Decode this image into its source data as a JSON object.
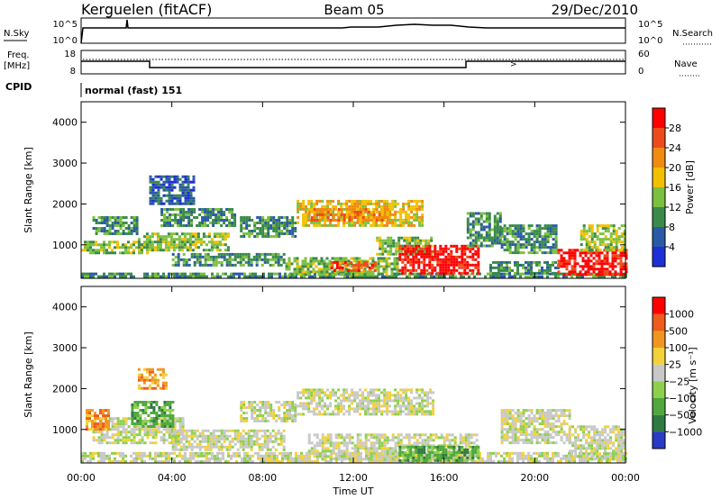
{
  "header": {
    "station": "Kerguelen (fitACF)",
    "beam": "Beam 05",
    "date": "29/Dec/2010"
  },
  "top_panel": {
    "left_label": "N.Sky",
    "right_label": "N.Search",
    "ticks_left": [
      "10^5",
      "10^0"
    ],
    "ticks_right": [
      "10^5",
      "10^0"
    ]
  },
  "freq_panel": {
    "left_label_1": "Freq.",
    "left_label_2": "[MHz]",
    "ticks_left": [
      "18",
      "8"
    ],
    "ticks_right": [
      "60",
      "0"
    ],
    "right_label": "Nave"
  },
  "cpid": {
    "label": "CPID",
    "value": "normal (fast) 151"
  },
  "x_axis": {
    "title": "Time UT",
    "ticks": [
      "00:00",
      "04:00",
      "08:00",
      "12:00",
      "16:00",
      "20:00",
      "00:00"
    ]
  },
  "chart_data": [
    {
      "type": "heatmap",
      "name": "power",
      "ylabel": "Slant Range [km]",
      "ylim": [
        180,
        4500
      ],
      "yticks": [
        "1000",
        "2000",
        "3000",
        "4000"
      ],
      "xlim_hours": [
        0,
        24
      ],
      "colorbar": {
        "label": "Power [dB]",
        "ticks": [
          "4",
          "8",
          "12",
          "16",
          "20",
          "24",
          "28"
        ],
        "colors": [
          "#1e2fd8",
          "#2a5aa6",
          "#3a8a4a",
          "#7cc040",
          "#f2c000",
          "#f08a10",
          "#ee4b1c",
          "#ff0000"
        ]
      },
      "echo_regions": [
        {
          "t": [
            0.0,
            24.0
          ],
          "r": [
            200,
            320
          ],
          "level": 2
        },
        {
          "t": [
            0.0,
            3.0
          ],
          "r": [
            800,
            1100
          ],
          "level": 3
        },
        {
          "t": [
            0.5,
            2.5
          ],
          "r": [
            1300,
            1700
          ],
          "level": 2
        },
        {
          "t": [
            2.5,
            6.5
          ],
          "r": [
            900,
            1300
          ],
          "level": 3
        },
        {
          "t": [
            3.5,
            6.8
          ],
          "r": [
            1500,
            1900
          ],
          "level": 2
        },
        {
          "t": [
            4.0,
            9.0
          ],
          "r": [
            500,
            800
          ],
          "level": 2
        },
        {
          "t": [
            3.0,
            5.0
          ],
          "r": [
            2000,
            2700
          ],
          "level": 1
        },
        {
          "t": [
            7.0,
            9.5
          ],
          "r": [
            1200,
            1700
          ],
          "level": 2
        },
        {
          "t": [
            9.5,
            15.0
          ],
          "r": [
            1500,
            2100
          ],
          "level": 4
        },
        {
          "t": [
            10.0,
            13.5
          ],
          "r": [
            1600,
            1900
          ],
          "level": 5
        },
        {
          "t": [
            9.0,
            14.0
          ],
          "r": [
            300,
            700
          ],
          "level": 3
        },
        {
          "t": [
            11.0,
            13.0
          ],
          "r": [
            400,
            600
          ],
          "level": 6
        },
        {
          "t": [
            13.0,
            15.5
          ],
          "r": [
            800,
            1200
          ],
          "level": 3
        },
        {
          "t": [
            14.0,
            17.5
          ],
          "r": [
            300,
            1000
          ],
          "level": 7
        },
        {
          "t": [
            17.0,
            18.5
          ],
          "r": [
            1000,
            1800
          ],
          "level": 2
        },
        {
          "t": [
            18.5,
            21.0
          ],
          "r": [
            800,
            1500
          ],
          "level": 2
        },
        {
          "t": [
            18.0,
            21.0
          ],
          "r": [
            300,
            600
          ],
          "level": 2
        },
        {
          "t": [
            21.0,
            24.0
          ],
          "r": [
            300,
            900
          ],
          "level": 7
        },
        {
          "t": [
            22.0,
            24.0
          ],
          "r": [
            900,
            1500
          ],
          "level": 3
        }
      ]
    },
    {
      "type": "heatmap",
      "name": "velocity",
      "ylabel": "Slant Range [km]",
      "ylim": [
        180,
        4500
      ],
      "yticks": [
        "1000",
        "2000",
        "3000",
        "4000"
      ],
      "xlim_hours": [
        0,
        24
      ],
      "colorbar": {
        "label": "Velocity [m s⁻¹]",
        "ticks": [
          "1000",
          "500",
          "100",
          "25",
          "−25",
          "−100",
          "−500",
          "−1000"
        ],
        "colors": [
          "#2a3bc8",
          "#2e7a42",
          "#4ea83c",
          "#8ed04c",
          "#c8c8c8",
          "#f2d238",
          "#f09620",
          "#ee5b1a",
          "#ff0000"
        ]
      },
      "echo_regions": [
        {
          "t": [
            0.0,
            24.0
          ],
          "r": [
            200,
            450
          ],
          "level": 4
        },
        {
          "t": [
            0.5,
            4.5
          ],
          "r": [
            700,
            1300
          ],
          "level": 4
        },
        {
          "t": [
            2.2,
            4.0
          ],
          "r": [
            1100,
            1700
          ],
          "level": 2
        },
        {
          "t": [
            4.0,
            9.0
          ],
          "r": [
            500,
            1000
          ],
          "level": 4
        },
        {
          "t": [
            7.0,
            9.5
          ],
          "r": [
            1200,
            1700
          ],
          "level": 4
        },
        {
          "t": [
            9.5,
            15.5
          ],
          "r": [
            1400,
            2000
          ],
          "level": 4
        },
        {
          "t": [
            10.0,
            17.5
          ],
          "r": [
            300,
            900
          ],
          "level": 4
        },
        {
          "t": [
            14.0,
            17.5
          ],
          "r": [
            250,
            600
          ],
          "level": 2
        },
        {
          "t": [
            18.5,
            21.5
          ],
          "r": [
            700,
            1500
          ],
          "level": 4
        },
        {
          "t": [
            21.5,
            24.0
          ],
          "r": [
            300,
            1100
          ],
          "level": 4
        },
        {
          "t": [
            0.2,
            1.2
          ],
          "r": [
            1000,
            1500
          ],
          "level": 6
        },
        {
          "t": [
            2.5,
            3.8
          ],
          "r": [
            2000,
            2500
          ],
          "level": 6
        }
      ]
    }
  ]
}
